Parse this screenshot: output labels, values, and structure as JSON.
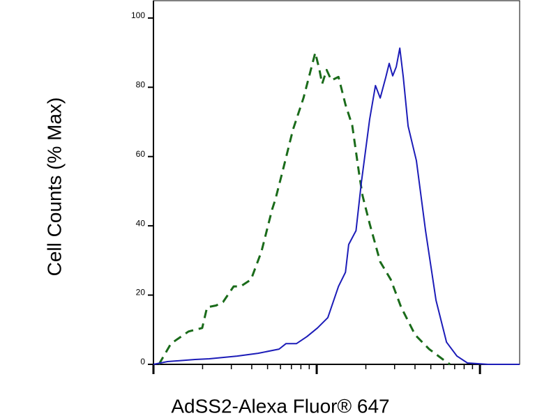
{
  "chart_data": {
    "type": "line",
    "xlabel": "AdSS2-Alexa Fluor® 647",
    "ylabel": "Cell Counts (% Max)",
    "xscale": "log",
    "xlim": [
      1,
      175
    ],
    "xticks": [
      1,
      10,
      100
    ],
    "ylim": [
      0,
      105
    ],
    "yticks": [
      0,
      20,
      40,
      60,
      80,
      100
    ],
    "series": [
      {
        "color": "#1a6b1a",
        "dash": true,
        "x": [
          1.08,
          1.28,
          1.64,
          1.99,
          2.13,
          2.42,
          2.67,
          3.1,
          3.42,
          3.96,
          4.59,
          5.33,
          5.59,
          6.18,
          7.16,
          8.3,
          9.8,
          10.4,
          10.8,
          11.5,
          12.3,
          13.6,
          15.0,
          16.5,
          18.2,
          19.1,
          21.1,
          24.5,
          28.4,
          32.9,
          40.1,
          48.8,
          59.4,
          65.5
        ],
        "values": [
          0,
          6,
          9.5,
          10.5,
          16.5,
          17,
          18,
          22.5,
          22.5,
          24.5,
          32.6,
          44.7,
          47.7,
          55.7,
          67.8,
          76.9,
          90,
          85,
          81,
          85,
          82,
          83,
          75,
          69,
          55,
          48.7,
          40.6,
          29.6,
          24.5,
          16.5,
          8.5,
          4.4,
          1.4,
          0
        ]
      },
      {
        "color": "#1c1cb8",
        "dash": false,
        "x": [
          1,
          1.22,
          1.8,
          2.2,
          3.26,
          4.38,
          5.88,
          6.49,
          7.52,
          8.71,
          10.1,
          11.7,
          13.6,
          15.0,
          15.7,
          17.4,
          18.8,
          21.1,
          22.9,
          24.5,
          26.5,
          27.8,
          29.2,
          30.7,
          32.3,
          33.9,
          36.3,
          40.8,
          46.4,
          53.8,
          62.4,
          72.3,
          83.8,
          112,
          175
        ],
        "values": [
          0,
          0.8,
          1.4,
          1.6,
          2.4,
          3.2,
          4.4,
          6,
          6,
          8,
          10.5,
          13.5,
          22.5,
          26.6,
          34.6,
          38.6,
          52.7,
          70.8,
          80.5,
          76.9,
          82.9,
          86.9,
          83.3,
          85.9,
          91.3,
          82.9,
          68.8,
          58.8,
          38.6,
          18.5,
          6.4,
          2.4,
          0.4,
          0,
          0
        ]
      }
    ]
  }
}
